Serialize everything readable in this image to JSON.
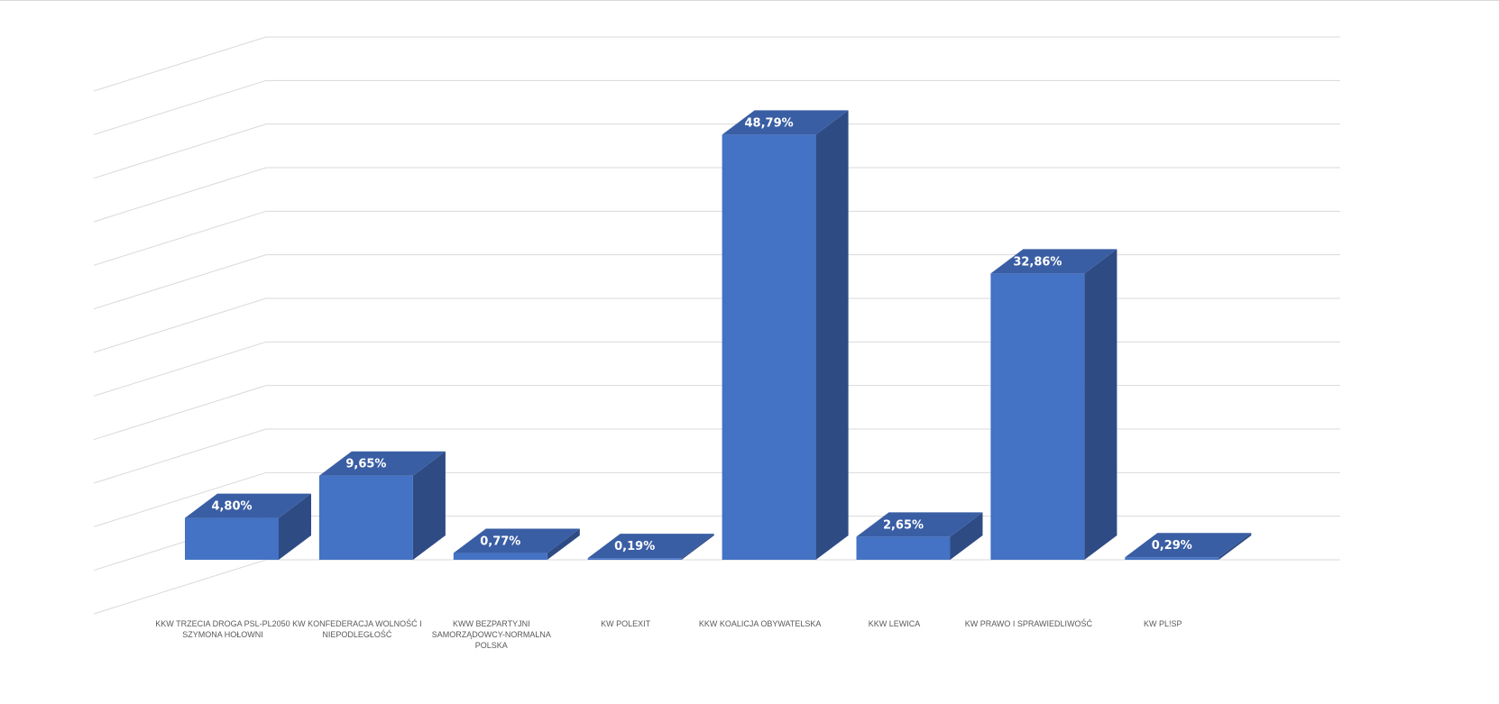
{
  "chart_data": {
    "type": "bar",
    "style": "3d-column",
    "categories": [
      "KKW TRZECIA DROGA PSL-PL2050 SZYMONA HOŁOWNI",
      "KW KONFEDERACJA WOLNOŚĆ I NIEPODLEGŁOŚĆ",
      "KWW BEZPARTYJNI SAMORZĄDOWCY-NORMALNA POLSKA",
      "KW POLEXIT",
      "KKW KOALICJA OBYWATELSKA",
      "KKW LEWICA",
      "KW PRAWO I SPRAWIEDLIWOŚĆ",
      "KW PL!SP"
    ],
    "values": [
      4.8,
      9.65,
      0.77,
      0.19,
      48.79,
      2.65,
      32.86,
      0.29
    ],
    "value_labels": [
      "4,80%",
      "9,65%",
      "0,77%",
      "0,19%",
      "48,79%",
      "2,65%",
      "32,86%",
      "0,29%"
    ],
    "ylim": [
      0,
      60
    ],
    "gridlines": 12,
    "grid": true,
    "title": "",
    "xlabel": "",
    "ylabel": "",
    "colors": {
      "bar_front": "#4472c4",
      "bar_side": "#2e4b84",
      "bar_top": "#3a5ea4",
      "gridline": "#d9d9d9",
      "label_text": "#ffffff",
      "category_text": "#595959"
    }
  }
}
